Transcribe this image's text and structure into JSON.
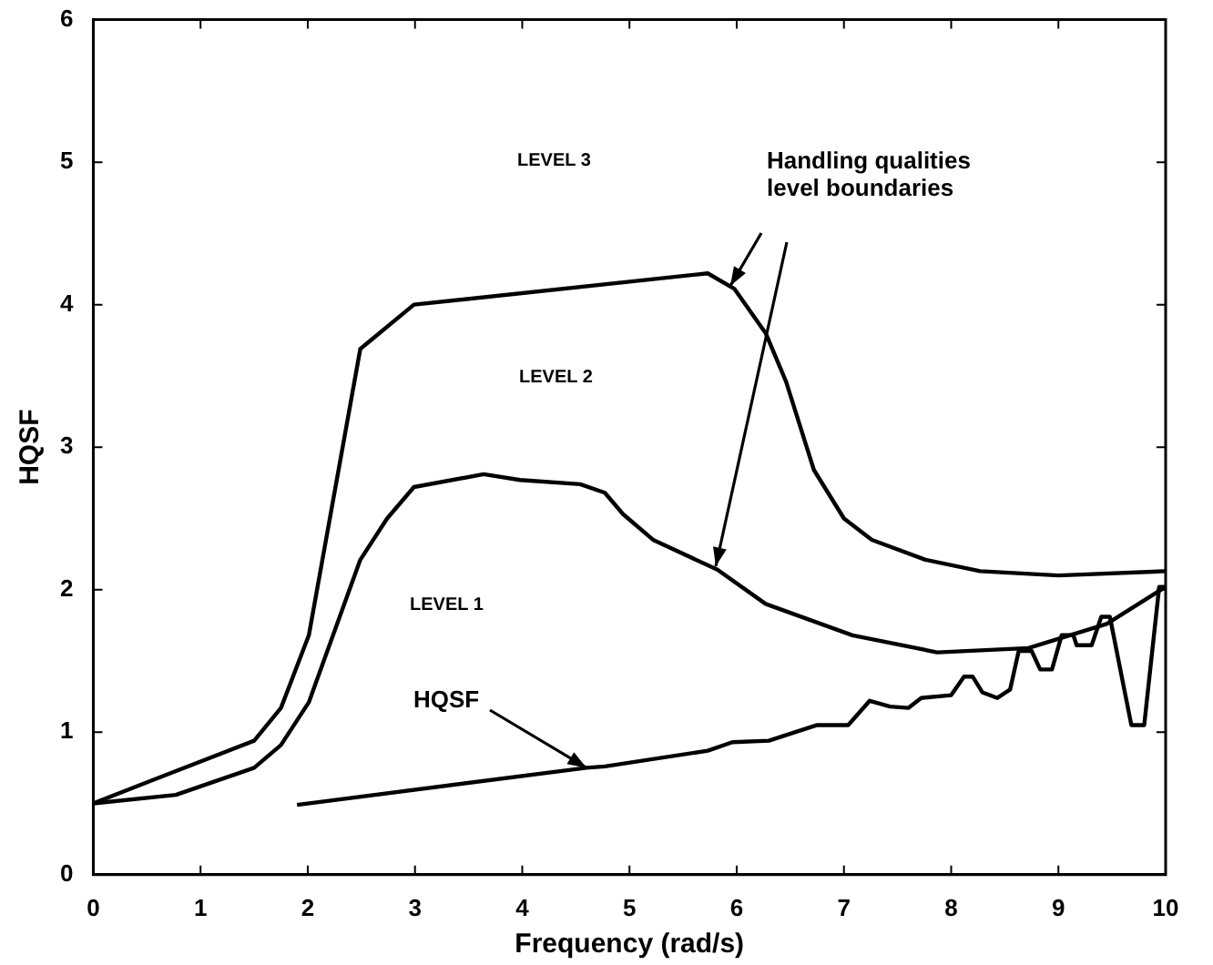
{
  "chart_data": {
    "type": "line",
    "xlabel": "Frequency (rad/s)",
    "ylabel": "HQSF",
    "xlim": [
      0,
      10
    ],
    "ylim": [
      0,
      6
    ],
    "xticks": [
      0,
      1,
      2,
      3,
      4,
      5,
      6,
      7,
      8,
      9,
      10
    ],
    "yticks": [
      0,
      1,
      2,
      3,
      4,
      5,
      6
    ],
    "grid": false,
    "legend": false,
    "marker": "none",
    "line_style": "solid",
    "series": [
      {
        "color": "#000000",
        "x": [
          0,
          0.54,
          1.5,
          1.75,
          2.01,
          2.49,
          2.99,
          5.73,
          5.98,
          6.27,
          6.46,
          6.72,
          7.0,
          7.26,
          7.76,
          8.27,
          9.0,
          10
        ],
        "values": [
          0.5,
          0.66,
          0.94,
          1.17,
          1.68,
          3.69,
          4.0,
          4.22,
          4.11,
          3.8,
          3.46,
          2.84,
          2.5,
          2.35,
          2.21,
          2.13,
          2.1,
          2.13
        ]
      },
      {
        "color": "#000000",
        "x": [
          0,
          0.77,
          1.5,
          1.75,
          2.01,
          2.49,
          2.74,
          2.99,
          3.64,
          3.98,
          4.54,
          4.77,
          4.94,
          5.22,
          5.82,
          6.27,
          7.08,
          7.87,
          8.72,
          9.45,
          10
        ],
        "values": [
          0.5,
          0.56,
          0.75,
          0.91,
          1.21,
          2.21,
          2.5,
          2.72,
          2.81,
          2.77,
          2.74,
          2.68,
          2.53,
          2.35,
          2.14,
          1.9,
          1.68,
          1.56,
          1.59,
          1.76,
          2.02
        ]
      },
      {
        "color": "#000000",
        "x": [
          1.9,
          4.6,
          4.77,
          5.73,
          5.96,
          6.3,
          6.75,
          7.04,
          7.24,
          7.43,
          7.6,
          7.72,
          8.0,
          8.12,
          8.2,
          8.29,
          8.43,
          8.55,
          8.63,
          8.75,
          8.83,
          8.94,
          9.03,
          9.14,
          9.17,
          9.31,
          9.4,
          9.48,
          9.68,
          9.8,
          9.94,
          10
        ],
        "values": [
          0.49,
          0.75,
          0.76,
          0.87,
          0.93,
          0.94,
          1.05,
          1.05,
          1.22,
          1.18,
          1.17,
          1.24,
          1.26,
          1.39,
          1.39,
          1.28,
          1.24,
          1.3,
          1.57,
          1.57,
          1.44,
          1.44,
          1.68,
          1.68,
          1.61,
          1.61,
          1.81,
          1.81,
          1.05,
          1.05,
          2.02,
          2.02
        ]
      }
    ],
    "annotations": [
      "LEVEL 3",
      "LEVEL 2",
      "LEVEL 1",
      {
        "text": "HQSF",
        "x": 4.6,
        "y": 0.75
      },
      "Handling qualities\nlevel boundaries"
    ]
  }
}
